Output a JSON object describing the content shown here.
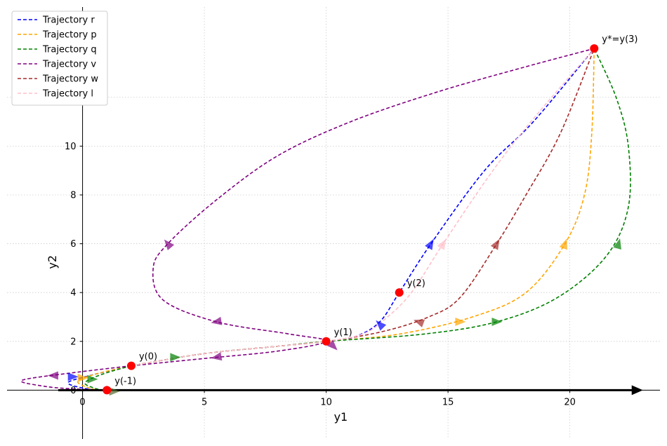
{
  "chart_data": {
    "type": "line",
    "xlabel": "y1",
    "ylabel": "y2",
    "xlim": [
      -3.1,
      23.7
    ],
    "ylim": [
      -2.0,
      15.7
    ],
    "x_ticks": [
      0,
      5,
      10,
      15,
      20
    ],
    "y_ticks": [
      0,
      2,
      4,
      6,
      8,
      10,
      12
    ],
    "grid": true,
    "legend_position": "top-left",
    "series": [
      {
        "name": "Trajectory r",
        "color": "#0000ff",
        "points": [
          [
            2,
            1
          ],
          [
            5,
            1.5
          ],
          [
            8,
            1.8
          ],
          [
            10,
            2
          ],
          [
            11.2,
            2.2
          ],
          [
            12.2,
            2.8
          ],
          [
            13,
            4
          ],
          [
            14.3,
            6
          ],
          [
            16.5,
            9
          ],
          [
            18.5,
            11
          ],
          [
            21,
            14
          ]
        ]
      },
      {
        "name": "Trajectory p",
        "color": "#ffa500",
        "points": [
          [
            2,
            1
          ],
          [
            5,
            1.5
          ],
          [
            8,
            1.8
          ],
          [
            10,
            2
          ],
          [
            13,
            2.3
          ],
          [
            16,
            3
          ],
          [
            18.2,
            4
          ],
          [
            19.8,
            6
          ],
          [
            20.6,
            8
          ],
          [
            20.9,
            10.5
          ],
          [
            21,
            14
          ]
        ]
      },
      {
        "name": "Trajectory q",
        "color": "#008000",
        "points": [
          [
            2,
            1
          ],
          [
            5,
            1.5
          ],
          [
            8,
            1.8
          ],
          [
            10,
            2
          ],
          [
            14,
            2.3
          ],
          [
            17,
            2.8
          ],
          [
            19.5,
            3.8
          ],
          [
            21.5,
            5.5
          ],
          [
            22.4,
            7.5
          ],
          [
            22.4,
            10
          ],
          [
            21.9,
            12
          ],
          [
            21,
            14
          ]
        ]
      },
      {
        "name": "Trajectory v",
        "color": "#800080",
        "points": [
          [
            2,
            1
          ],
          [
            5,
            1.3
          ],
          [
            8,
            1.6
          ],
          [
            10,
            2
          ],
          [
            8.5,
            2.3
          ],
          [
            5.5,
            2.8
          ],
          [
            3.3,
            3.7
          ],
          [
            2.9,
            5
          ],
          [
            3.5,
            6
          ],
          [
            5.5,
            7.8
          ],
          [
            8,
            9.6
          ],
          [
            11,
            11
          ],
          [
            14.5,
            12.2
          ],
          [
            18,
            13.2
          ],
          [
            21,
            14
          ]
        ]
      },
      {
        "name": "Trajectory w",
        "color": "#a52a2a",
        "points": [
          [
            2,
            1
          ],
          [
            5,
            1.5
          ],
          [
            8,
            1.8
          ],
          [
            10,
            2
          ],
          [
            12.3,
            2.4
          ],
          [
            14.2,
            3
          ],
          [
            15.5,
            3.8
          ],
          [
            17,
            6
          ],
          [
            18.2,
            8
          ],
          [
            19.6,
            10.5
          ],
          [
            21,
            14
          ]
        ]
      },
      {
        "name": "Trajectory l",
        "color": "#ffc0cb",
        "points": [
          [
            2,
            1
          ],
          [
            5,
            1.5
          ],
          [
            8,
            1.8
          ],
          [
            10,
            2
          ],
          [
            11.5,
            2.3
          ],
          [
            12.4,
            2.9
          ],
          [
            13.5,
            4
          ],
          [
            14.8,
            6
          ],
          [
            16.7,
            8.8
          ],
          [
            18.4,
            11
          ],
          [
            21,
            14
          ]
        ]
      }
    ],
    "lower_loop": {
      "color": "#800080",
      "points": [
        [
          2,
          1
        ],
        [
          -0.5,
          0.7
        ],
        [
          -2.5,
          0.4
        ],
        [
          -1.5,
          0.15
        ],
        [
          -0.3,
          0.05
        ],
        [
          1,
          0
        ]
      ]
    },
    "lower_loops_small": [
      {
        "color": "#0000ff",
        "points": [
          [
            2,
            1
          ],
          [
            0.3,
            0.6
          ],
          [
            -0.6,
            0.3
          ],
          [
            0.2,
            0.05
          ],
          [
            1,
            0
          ]
        ]
      },
      {
        "color": "#ffa500",
        "points": [
          [
            2,
            1
          ],
          [
            0.5,
            0.65
          ],
          [
            -0.2,
            0.35
          ],
          [
            0.4,
            0.05
          ],
          [
            1,
            0
          ]
        ]
      },
      {
        "color": "#008000",
        "points": [
          [
            2,
            1
          ],
          [
            0.8,
            0.65
          ],
          [
            0.1,
            0.3
          ],
          [
            0.6,
            0.05
          ],
          [
            1,
            0
          ]
        ]
      }
    ],
    "arrow_markers": [
      {
        "color": "#0000ff",
        "x": 14.3,
        "y": 6.0,
        "angle": -60
      },
      {
        "color": "#0000ff",
        "x": 12.2,
        "y": 2.7,
        "angle": -135
      },
      {
        "color": "#ffc0cb",
        "x": 14.8,
        "y": 6.0,
        "angle": -60
      },
      {
        "color": "#a52a2a",
        "x": 17.0,
        "y": 6.0,
        "angle": -60
      },
      {
        "color": "#a52a2a",
        "x": 13.8,
        "y": 2.8,
        "angle": 200
      },
      {
        "color": "#ffa500",
        "x": 19.8,
        "y": 6.0,
        "angle": -70
      },
      {
        "color": "#ffa500",
        "x": 15.5,
        "y": 2.8,
        "angle": 0
      },
      {
        "color": "#008000",
        "x": 22.0,
        "y": 6.0,
        "angle": -75
      },
      {
        "color": "#008000",
        "x": 17.0,
        "y": 2.8,
        "angle": 0
      },
      {
        "color": "#008000",
        "x": 3.8,
        "y": 1.35,
        "angle": 0
      },
      {
        "color": "#800080",
        "x": 3.5,
        "y": 6.0,
        "angle": 230
      },
      {
        "color": "#800080",
        "x": 5.5,
        "y": 2.8,
        "angle": 170
      },
      {
        "color": "#800080",
        "x": 10.3,
        "y": 1.8,
        "angle": 45
      },
      {
        "color": "#800080",
        "x": 5.5,
        "y": 1.35,
        "angle": 170
      },
      {
        "color": "#800080",
        "x": -1.2,
        "y": 0.6,
        "angle": 180
      },
      {
        "color": "#008000",
        "x": 0.4,
        "y": 0.45,
        "angle": 0
      },
      {
        "color": "#ffa500",
        "x": 0.0,
        "y": 0.5,
        "angle": 0
      },
      {
        "color": "#0000ff",
        "x": -0.4,
        "y": 0.55,
        "angle": 0
      },
      {
        "color": "#556b2f",
        "x": 1.3,
        "y": -0.05,
        "angle": 0
      }
    ],
    "key_points": [
      {
        "label": "y(-1)",
        "x": 1,
        "y": 0
      },
      {
        "label": "y(0)",
        "x": 2,
        "y": 1
      },
      {
        "label": "y(1)",
        "x": 10,
        "y": 2
      },
      {
        "label": "y(2)",
        "x": 13,
        "y": 4
      },
      {
        "label": "y*=y(3)",
        "x": 21,
        "y": 14
      }
    ],
    "baseline_arrow": {
      "x_start": -1,
      "x_end": 23,
      "y": 0,
      "color": "#000000"
    }
  }
}
